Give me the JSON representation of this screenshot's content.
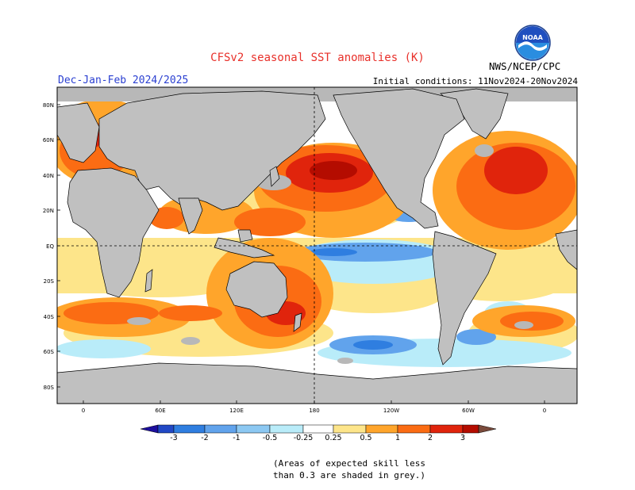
{
  "header": {
    "title": "CFSv2 seasonal SST anomalies (K)",
    "season": "Dec-Jan-Feb 2024/2025",
    "initial_conditions": "Initial conditions: 11Nov2024-20Nov2024",
    "agency": "NWS/NCEP/CPC",
    "logo_text": "NOAA"
  },
  "map": {
    "lat_labels": [
      "80N",
      "60N",
      "40N",
      "20N",
      "EQ",
      "20S",
      "40S",
      "60S",
      "80S"
    ],
    "lon_labels": [
      "0",
      "60E",
      "120E",
      "180",
      "120W",
      "60W",
      "0"
    ]
  },
  "colorbar": {
    "tick_labels": [
      "-3",
      "-2",
      "-1",
      "-0.5",
      "-0.25",
      "0.25",
      "0.5",
      "1",
      "2",
      "3"
    ],
    "colors": [
      "#1d0f9e",
      "#2148c5",
      "#2f7ee0",
      "#61a3ec",
      "#8cc8f2",
      "#b9ecf9",
      "#ffffff",
      "#fde58a",
      "#ffa52b",
      "#fb6c13",
      "#e0240c",
      "#b40c00",
      "#8b0f0f",
      "#7a4a3b"
    ]
  },
  "note": {
    "line1": "(Areas of expected skill less",
    "line2": "than 0.3 are shaded in grey.)"
  },
  "colors": {
    "land": "#c0c0c0",
    "low_skill": "#b8b8b8"
  }
}
